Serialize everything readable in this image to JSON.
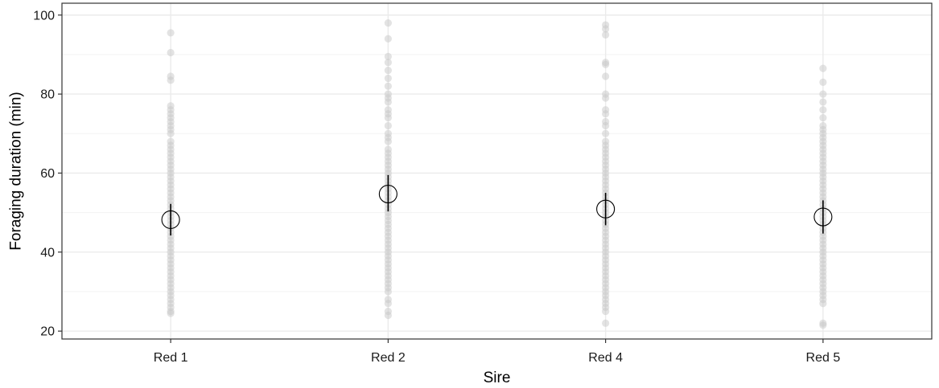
{
  "chart_data": {
    "type": "scatter",
    "title": "",
    "xlabel": "Sire",
    "ylabel": "Foraging duration (min)",
    "categories": [
      "Red 1",
      "Red 2",
      "Red 4",
      "Red 5"
    ],
    "ylim": [
      18,
      103
    ],
    "yticks": [
      "20",
      "40",
      "60",
      "80",
      "100"
    ],
    "grid": true,
    "raw_points": [
      {
        "category": "Red 1",
        "values": [
          95.5,
          90.5,
          84.5,
          83.5,
          77,
          76,
          75,
          74,
          73,
          72,
          71,
          70,
          68,
          67,
          66,
          65,
          64,
          63,
          62,
          61,
          60,
          59,
          58,
          57,
          56,
          55,
          54,
          53,
          52,
          51,
          50,
          49,
          48,
          47,
          46,
          45,
          44,
          43,
          42,
          41,
          40,
          39,
          38,
          37,
          36,
          35,
          34,
          33,
          32,
          31,
          30,
          29,
          28,
          27,
          26,
          25,
          24.5
        ]
      },
      {
        "category": "Red 2",
        "values": [
          98,
          94,
          89.5,
          88,
          86,
          84,
          82,
          80,
          79,
          78,
          76,
          75,
          74,
          72,
          70,
          69,
          68,
          66,
          65,
          64,
          63,
          62,
          61,
          60,
          59,
          58,
          57,
          56,
          55,
          54,
          53,
          52,
          51,
          50,
          49,
          48,
          47,
          46,
          45,
          44,
          43,
          42,
          41,
          40,
          39,
          38,
          37,
          36,
          35,
          34,
          33,
          32,
          31,
          30,
          28,
          27,
          25,
          24
        ]
      },
      {
        "category": "Red 4",
        "values": [
          97.5,
          96.5,
          95,
          88,
          87.5,
          84.5,
          80,
          79,
          76,
          75,
          73,
          72,
          70,
          68,
          67,
          66,
          65,
          64,
          63,
          62,
          61,
          60,
          59,
          58,
          57,
          56,
          55,
          54,
          53,
          52,
          51,
          50,
          49,
          48,
          47,
          46,
          45,
          44,
          43,
          42,
          41,
          40,
          39,
          38,
          37,
          36,
          35,
          34,
          33,
          32,
          31,
          30,
          29,
          28,
          27,
          26,
          25,
          22
        ]
      },
      {
        "category": "Red 5",
        "values": [
          86.5,
          83,
          80,
          78,
          76,
          74,
          72,
          71,
          70,
          69,
          68,
          67,
          66,
          65,
          64,
          63,
          62,
          61,
          60,
          59,
          58,
          57,
          56,
          55,
          54,
          53,
          52,
          51,
          50,
          49,
          48,
          47,
          46,
          45,
          44,
          43,
          42,
          41,
          40,
          39,
          38,
          37,
          36,
          35,
          34,
          33,
          32,
          31,
          30,
          29,
          28,
          27,
          22,
          21.5
        ]
      }
    ],
    "summary": [
      {
        "category": "Red 1",
        "mean": 48.2,
        "lower": 44.2,
        "upper": 52.2
      },
      {
        "category": "Red 2",
        "mean": 54.7,
        "lower": 50.3,
        "upper": 59.5
      },
      {
        "category": "Red 4",
        "mean": 50.9,
        "lower": 46.8,
        "upper": 55.0
      },
      {
        "category": "Red 5",
        "mean": 48.9,
        "lower": 44.7,
        "upper": 53.1
      }
    ],
    "colors": {
      "raw_point": "#c8c8c8",
      "summary_point": "#000000",
      "grid_major": "#ebebeb",
      "grid_minor": "#f3f3f3",
      "panel_border": "#333333"
    }
  }
}
